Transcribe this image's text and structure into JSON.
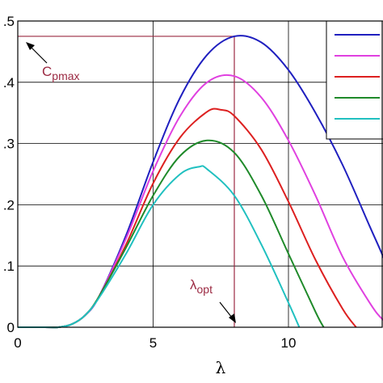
{
  "chart_data": {
    "type": "line",
    "title": "",
    "xlabel": "λ",
    "ylabel": "",
    "xlim": [
      0,
      14
    ],
    "ylim": [
      0,
      0.5
    ],
    "x_ticks": [
      0,
      5,
      10
    ],
    "x_tick_labels": [
      "0",
      "5",
      "10"
    ],
    "y_ticks": [
      0,
      0.1,
      0.2,
      0.3,
      0.4,
      0.5
    ],
    "y_tick_labels": [
      "0",
      ".1",
      ".2",
      ".3",
      ".4",
      ".5"
    ],
    "grid": true,
    "legend": {
      "placement": "top-right",
      "labels_visible": false
    },
    "series": [
      {
        "color": "#1f1fbf",
        "x": [
          0,
          1,
          1.5,
          2,
          2.5,
          3,
          4,
          5,
          6,
          7,
          8,
          9,
          10,
          11,
          12,
          13,
          13.5,
          14
        ],
        "y": [
          0,
          0,
          0,
          0.005,
          0.02,
          0.05,
          0.15,
          0.27,
          0.375,
          0.445,
          0.475,
          0.465,
          0.42,
          0.35,
          0.265,
          0.165,
          0.115,
          0.06
        ]
      },
      {
        "color": "#e040e0",
        "x": [
          0,
          1,
          1.5,
          2,
          2.5,
          3,
          4,
          5,
          6,
          7,
          8,
          9,
          10,
          11,
          12,
          13,
          13.5,
          14
        ],
        "y": [
          0,
          0,
          0,
          0.005,
          0.02,
          0.05,
          0.145,
          0.255,
          0.345,
          0.4,
          0.41,
          0.375,
          0.305,
          0.215,
          0.115,
          0.04,
          0.012,
          0
        ]
      },
      {
        "color": "#dd2020",
        "x": [
          0,
          1,
          1.5,
          2,
          2.5,
          3,
          4,
          5,
          6,
          7,
          7.5,
          8,
          9,
          10,
          11,
          12,
          12.5
        ],
        "y": [
          0,
          0,
          0,
          0.005,
          0.02,
          0.05,
          0.135,
          0.235,
          0.31,
          0.352,
          0.355,
          0.345,
          0.29,
          0.205,
          0.11,
          0.03,
          0
        ]
      },
      {
        "color": "#1f8a2a",
        "x": [
          0,
          1,
          1.5,
          2,
          2.5,
          3,
          4,
          5,
          6,
          7,
          8,
          9,
          10,
          11,
          11.3
        ],
        "y": [
          0,
          0,
          0,
          0.005,
          0.02,
          0.05,
          0.13,
          0.215,
          0.28,
          0.305,
          0.285,
          0.215,
          0.12,
          0.025,
          0
        ]
      },
      {
        "color": "#20c0c0",
        "x": [
          0,
          1,
          1.5,
          2,
          2.5,
          3,
          4,
          5,
          6,
          6.7,
          7,
          8,
          9,
          10,
          10.4
        ],
        "y": [
          0,
          0,
          0,
          0.005,
          0.02,
          0.048,
          0.12,
          0.2,
          0.25,
          0.262,
          0.258,
          0.215,
          0.135,
          0.04,
          0
        ]
      }
    ],
    "annotations": [
      {
        "text_main": "C",
        "text_sub": "pmax",
        "points_to": [
          0,
          0.475
        ]
      },
      {
        "text_main": "λ",
        "text_sub": "opt",
        "points_to": [
          8,
          0
        ]
      }
    ],
    "reference_lines": {
      "cp_max": 0.475,
      "lambda_opt": 8
    }
  }
}
